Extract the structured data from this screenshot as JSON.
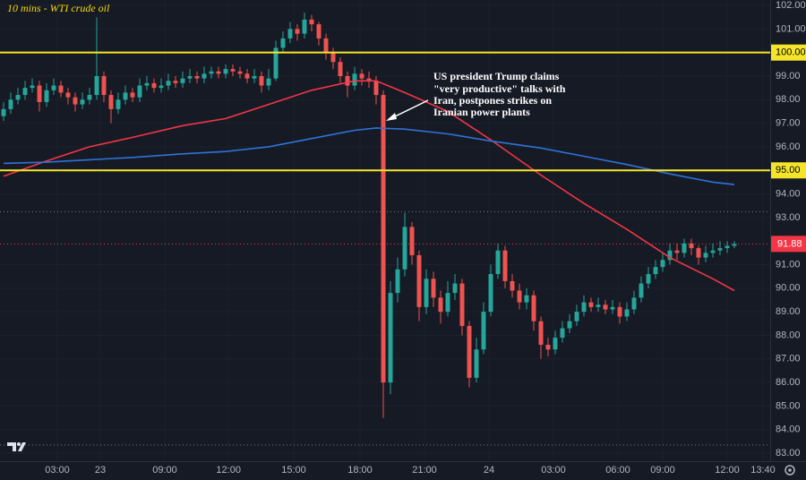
{
  "chart_data": {
    "type": "candlestick",
    "title": "10 mins - WTI crude oil",
    "annotation": [
      "US president Trump claims",
      "\"very productive\" talks with",
      "Iran, postpones strikes on",
      "Iranian power plants"
    ],
    "up_color": "#26a69a",
    "down_color": "#ef5350",
    "open": [
      97.3,
      97.6,
      98.0,
      98.2,
      98.5,
      98.6,
      97.9,
      98.4,
      98.6,
      98.3,
      98.1,
      97.8,
      98.0,
      98.2,
      99.0,
      98.2,
      97.6,
      98.0,
      98.3,
      98.1,
      98.6,
      98.7,
      98.5,
      98.6,
      98.8,
      98.7,
      98.9,
      99.0,
      98.9,
      99.1,
      99.2,
      99.1,
      99.3,
      99.2,
      99.1,
      98.9,
      99.0,
      98.6,
      98.9,
      100.2,
      100.6,
      101.0,
      100.8,
      101.4,
      101.2,
      100.6,
      100.0,
      99.6,
      99.0,
      98.6,
      99.1,
      98.9,
      98.8,
      98.2,
      86.0,
      89.8,
      90.8,
      92.6,
      91.4,
      89.2,
      90.4,
      89.6,
      89.0,
      89.8,
      90.2,
      88.4,
      86.2,
      87.4,
      89.0,
      90.6,
      91.6,
      90.3,
      89.9,
      89.4,
      89.7,
      88.6,
      87.6,
      87.4,
      87.9,
      88.3,
      88.6,
      89.0,
      89.4,
      89.2,
      89.3,
      89.1,
      89.2,
      88.8,
      89.1,
      89.6,
      90.2,
      90.6,
      90.9,
      91.2,
      91.6,
      91.5,
      91.9,
      91.7,
      91.3,
      91.5,
      91.6,
      91.7,
      91.8
    ],
    "high": [
      97.9,
      98.3,
      98.5,
      98.8,
      98.9,
      98.8,
      98.7,
      98.9,
      98.8,
      98.5,
      98.3,
      98.3,
      98.5,
      101.5,
      99.2,
      98.4,
      98.3,
      98.6,
      98.5,
      98.9,
      99.0,
      98.9,
      98.9,
      99.1,
      99.0,
      99.2,
      99.3,
      99.2,
      99.4,
      99.4,
      99.4,
      99.5,
      99.5,
      99.4,
      99.3,
      99.3,
      99.2,
      99.3,
      100.5,
      100.9,
      101.3,
      101.2,
      101.7,
      101.6,
      101.3,
      100.8,
      100.2,
      99.8,
      99.2,
      99.4,
      99.3,
      99.2,
      99.0,
      98.4,
      90.3,
      91.3,
      93.2,
      92.8,
      91.6,
      90.8,
      90.7,
      89.9,
      90.3,
      90.6,
      90.4,
      88.6,
      87.9,
      89.4,
      91.0,
      91.9,
      91.8,
      90.6,
      90.2,
      90.0,
      89.9,
      88.8,
      87.9,
      88.2,
      88.6,
      88.9,
      89.3,
      89.7,
      89.6,
      89.6,
      89.5,
      89.5,
      89.4,
      89.4,
      89.9,
      90.5,
      90.9,
      91.2,
      91.5,
      91.9,
      91.9,
      92.1,
      92.1,
      91.8,
      91.8,
      91.9,
      92.0,
      92.0,
      92.0
    ],
    "low": [
      97.1,
      97.4,
      97.8,
      98.0,
      98.3,
      97.5,
      97.7,
      98.2,
      98.1,
      97.8,
      97.5,
      97.6,
      97.8,
      98.0,
      97.9,
      97.0,
      97.4,
      97.8,
      97.9,
      97.9,
      98.4,
      98.3,
      98.3,
      98.4,
      98.5,
      98.5,
      98.7,
      98.7,
      98.7,
      98.9,
      98.9,
      98.9,
      99.0,
      98.9,
      98.7,
      98.7,
      98.3,
      98.4,
      98.8,
      100.0,
      100.4,
      100.5,
      100.6,
      100.9,
      100.3,
      99.7,
      99.3,
      98.7,
      98.1,
      98.4,
      98.6,
      98.5,
      97.8,
      84.5,
      85.5,
      89.4,
      90.5,
      91.0,
      88.6,
      88.9,
      89.2,
      88.5,
      88.8,
      89.5,
      88.0,
      85.8,
      86.0,
      87.2,
      88.8,
      90.4,
      90.0,
      89.6,
      89.1,
      89.1,
      88.2,
      87.0,
      87.1,
      87.2,
      87.7,
      88.1,
      88.4,
      88.8,
      89.0,
      89.0,
      88.9,
      88.9,
      88.5,
      88.6,
      88.9,
      89.4,
      90.0,
      90.4,
      90.7,
      91.0,
      91.2,
      91.3,
      91.4,
      91.0,
      91.1,
      91.3,
      91.4,
      91.5,
      91.7
    ],
    "close": [
      97.6,
      98.0,
      98.2,
      98.5,
      98.6,
      97.9,
      98.4,
      98.6,
      98.3,
      98.1,
      97.8,
      98.0,
      98.2,
      99.0,
      98.2,
      97.6,
      98.0,
      98.3,
      98.1,
      98.6,
      98.7,
      98.5,
      98.6,
      98.8,
      98.7,
      98.9,
      99.0,
      98.9,
      99.1,
      99.2,
      99.1,
      99.3,
      99.2,
      99.1,
      98.9,
      99.0,
      98.6,
      98.9,
      100.2,
      100.6,
      101.0,
      100.8,
      101.4,
      101.2,
      100.6,
      100.0,
      99.6,
      99.0,
      98.6,
      99.1,
      98.9,
      98.8,
      98.2,
      86.0,
      89.8,
      90.8,
      92.6,
      91.4,
      89.2,
      90.4,
      89.6,
      89.0,
      89.8,
      90.2,
      88.4,
      86.2,
      87.4,
      89.0,
      90.6,
      91.6,
      90.3,
      89.9,
      89.4,
      89.7,
      88.6,
      87.6,
      87.4,
      87.9,
      88.3,
      88.6,
      89.0,
      89.4,
      89.2,
      89.3,
      89.1,
      89.2,
      88.8,
      89.1,
      89.6,
      90.2,
      90.6,
      90.9,
      91.2,
      91.6,
      91.5,
      91.9,
      91.7,
      91.3,
      91.5,
      91.6,
      91.7,
      91.8,
      91.88
    ],
    "averages": [
      {
        "color": "#f23645",
        "x": [
          0,
          6,
          12,
          18,
          25,
          31,
          37,
          43,
          49,
          52,
          56,
          62,
          68,
          75,
          81,
          87,
          93,
          99,
          102
        ],
        "values": [
          94.75,
          95.4,
          96.0,
          96.4,
          96.9,
          97.2,
          97.8,
          98.4,
          98.8,
          98.8,
          98.3,
          97.5,
          96.3,
          94.8,
          93.6,
          92.5,
          91.3,
          90.4,
          89.9
        ]
      },
      {
        "color": "#2f73d8",
        "x": [
          0,
          6,
          12,
          18,
          25,
          31,
          37,
          43,
          49,
          52,
          56,
          62,
          68,
          75,
          81,
          87,
          93,
          99,
          102
        ],
        "values": [
          95.3,
          95.35,
          95.45,
          95.55,
          95.7,
          95.8,
          96.0,
          96.35,
          96.7,
          96.8,
          96.75,
          96.55,
          96.25,
          95.95,
          95.6,
          95.25,
          94.85,
          94.5,
          94.4
        ]
      }
    ],
    "levels": [
      {
        "value": 100,
        "label": "100.00"
      },
      {
        "value": 95,
        "label": "95.00"
      }
    ],
    "level_color": "#f5e52a",
    "dotted_levels": [
      93.25,
      83.35
    ],
    "last_price": 91.88,
    "last_price_label": "91.88",
    "last_price_color": "#f23645",
    "xlim": [
      -0.5,
      107
    ],
    "xticks": [
      {
        "value": 7.5,
        "label": "03:00"
      },
      {
        "value": 13.5,
        "label": "23"
      },
      {
        "value": 22.5,
        "label": "09:00"
      },
      {
        "value": 31.4,
        "label": "12:00"
      },
      {
        "value": 40.5,
        "label": "15:00"
      },
      {
        "value": 49.75,
        "label": "18:00"
      },
      {
        "value": 58.75,
        "label": "21:00"
      },
      {
        "value": 67.75,
        "label": "24"
      },
      {
        "value": 76.75,
        "label": "03:00"
      },
      {
        "value": 85.75,
        "label": "06:00"
      },
      {
        "value": 92,
        "label": "09:00"
      },
      {
        "value": 101,
        "label": "12:00"
      },
      {
        "value": 106,
        "label": "13:40"
      }
    ],
    "ylim": [
      82.66,
      102.23
    ],
    "yticks": [
      {
        "value": 102,
        "label": "102.00"
      },
      {
        "value": 101,
        "label": "101.00"
      },
      {
        "value": 99,
        "label": "99.00"
      },
      {
        "value": 98,
        "label": "98.00"
      },
      {
        "value": 97,
        "label": "97.00"
      },
      {
        "value": 96,
        "label": "96.00"
      },
      {
        "value": 94,
        "label": "94.00"
      },
      {
        "value": 93,
        "label": "93.00"
      },
      {
        "value": 91,
        "label": "91.00"
      },
      {
        "value": 90,
        "label": "90.00"
      },
      {
        "value": 89,
        "label": "89.00"
      },
      {
        "value": 88,
        "label": "88.00"
      },
      {
        "value": 87,
        "label": "87.00"
      },
      {
        "value": 86,
        "label": "86.00"
      },
      {
        "value": 85,
        "label": "85.00"
      },
      {
        "value": 84,
        "label": "84.00"
      },
      {
        "value": 83,
        "label": "83.00"
      }
    ],
    "grid": true
  }
}
